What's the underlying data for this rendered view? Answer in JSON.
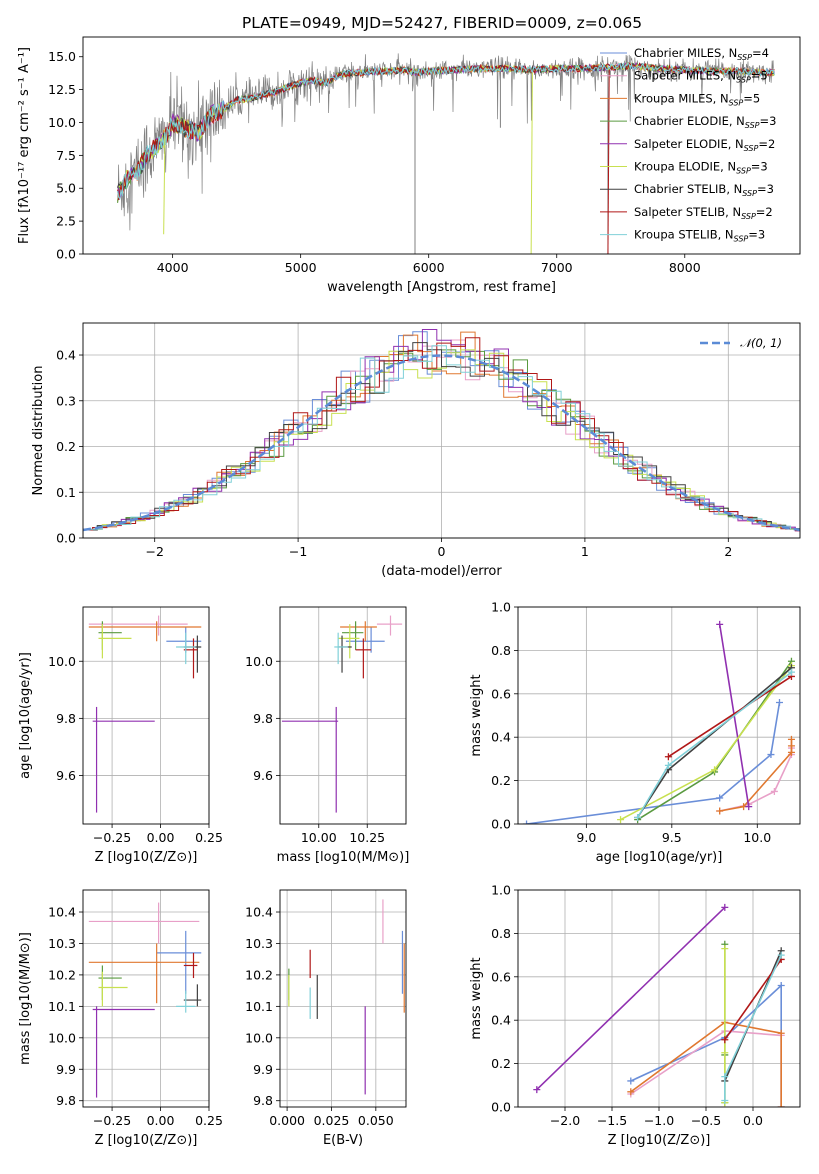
{
  "title": "PLATE=0949, MJD=52427, FIBERID=0009, z=0.065",
  "colors": {
    "spectrum": "#808080",
    "Chabrier MILES": "#6a8ed8",
    "Salpeter MILES": "#e8a0c8",
    "Kroupa MILES": "#e07830",
    "Chabrier ELODIE": "#5a9a40",
    "Salpeter ELODIE": "#9030b0",
    "Kroupa ELODIE": "#c8e050",
    "Chabrier STELIB": "#404040",
    "Salpeter STELIB": "#b01818",
    "Kroupa STELIB": "#80d0d8",
    "normal": "#5b8bd6"
  },
  "chart_data": [
    {
      "id": "spectrum",
      "type": "line",
      "xlabel": "wavelength [Angstrom, rest frame]",
      "ylabel": "Flux [fλ10⁻¹⁷ erg cm⁻² s⁻¹ A⁻¹]",
      "xlim": [
        3300,
        8900
      ],
      "ylim": [
        0,
        16.5
      ],
      "xticks": [
        "4000",
        "5000",
        "6000",
        "7000",
        "8000"
      ],
      "yticks": [
        "0.0",
        "2.5",
        "5.0",
        "7.5",
        "10.0",
        "12.5",
        "15.0"
      ],
      "continuum": [
        [
          3570,
          4.5
        ],
        [
          3650,
          5.8
        ],
        [
          3720,
          6.2
        ],
        [
          3800,
          7.6
        ],
        [
          3880,
          8.2
        ],
        [
          3950,
          9.0
        ],
        [
          4000,
          10.0
        ],
        [
          4100,
          9.6
        ],
        [
          4200,
          9.2
        ],
        [
          4300,
          10.6
        ],
        [
          4400,
          11.0
        ],
        [
          4500,
          11.7
        ],
        [
          4600,
          11.8
        ],
        [
          4700,
          12.1
        ],
        [
          4800,
          12.3
        ],
        [
          4900,
          12.7
        ],
        [
          5000,
          13.0
        ],
        [
          5100,
          13.2
        ],
        [
          5200,
          13.0
        ],
        [
          5300,
          13.6
        ],
        [
          5400,
          13.8
        ],
        [
          5500,
          13.8
        ],
        [
          5600,
          13.9
        ],
        [
          5700,
          13.9
        ],
        [
          5800,
          14.0
        ],
        [
          5900,
          13.8
        ],
        [
          6000,
          13.9
        ],
        [
          6200,
          14.0
        ],
        [
          6400,
          14.1
        ],
        [
          6600,
          14.1
        ],
        [
          6800,
          14.0
        ],
        [
          7000,
          14.1
        ],
        [
          7200,
          14.1
        ],
        [
          7400,
          14.2
        ],
        [
          7600,
          14.3
        ],
        [
          7800,
          14.1
        ],
        [
          8000,
          14.0
        ],
        [
          8200,
          13.9
        ],
        [
          8400,
          13.9
        ],
        [
          8600,
          13.8
        ],
        [
          8700,
          13.8
        ]
      ],
      "legend": [
        {
          "label": "Chabrier MILES, N",
          "sub": "SSP",
          "tail": "=4"
        },
        {
          "label": "Salpeter MILES, N",
          "sub": "SSP",
          "tail": "=5"
        },
        {
          "label": "Kroupa MILES, N",
          "sub": "SSP",
          "tail": "=5"
        },
        {
          "label": "Chabrier ELODIE, N",
          "sub": "SSP",
          "tail": "=3"
        },
        {
          "label": "Salpeter ELODIE, N",
          "sub": "SSP",
          "tail": "=2"
        },
        {
          "label": "Kroupa ELODIE, N",
          "sub": "SSP",
          "tail": "=3"
        },
        {
          "label": "Chabrier STELIB, N",
          "sub": "SSP",
          "tail": "=3"
        },
        {
          "label": "Salpeter STELIB, N",
          "sub": "SSP",
          "tail": "=2"
        },
        {
          "label": "Kroupa STELIB, N",
          "sub": "SSP",
          "tail": "=3"
        }
      ]
    },
    {
      "id": "residuals",
      "type": "histogram",
      "xlabel": "(data-model)/error",
      "ylabel": "Normed distribution",
      "xlim": [
        -2.5,
        2.5
      ],
      "ylim": [
        0,
        0.47
      ],
      "xticks": [
        "−2",
        "−1",
        "0",
        "1",
        "2"
      ],
      "yticks": [
        "0.0",
        "0.1",
        "0.2",
        "0.3",
        "0.4"
      ],
      "legend": "𝒩(0, 1)"
    },
    {
      "id": "age-Z",
      "type": "scatter",
      "xlabel": "Z [log10(Z/Z⊙)]",
      "ylabel": "age  [log10(age/yr)]",
      "xlim": [
        -0.4,
        0.25
      ],
      "ylim": [
        9.43,
        10.19
      ],
      "xticks": [
        "−0.25",
        "0.00",
        "0.25"
      ],
      "yticks": [
        "9.6",
        "9.8",
        "10.0"
      ],
      "points": [
        {
          "model": "Chabrier MILES",
          "x": 0.13,
          "y": 10.07,
          "xerr": [
            0.1,
            0.08
          ],
          "yerr": [
            0.04,
            0.05
          ]
        },
        {
          "model": "Salpeter MILES",
          "x": -0.01,
          "y": 10.13,
          "xerr": [
            0.36,
            0.15
          ],
          "yerr": [
            0.04,
            0.03
          ]
        },
        {
          "model": "Kroupa MILES",
          "x": -0.02,
          "y": 10.12,
          "xerr": [
            0.35,
            0.23
          ],
          "yerr": [
            0.05,
            0.02
          ]
        },
        {
          "model": "Chabrier ELODIE",
          "x": -0.3,
          "y": 10.1,
          "xerr": [
            0.02,
            0.1
          ],
          "yerr": [
            0.06,
            0.04
          ]
        },
        {
          "model": "Salpeter ELODIE",
          "x": -0.33,
          "y": 9.79,
          "xerr": [
            0.02,
            0.3
          ],
          "yerr": [
            0.32,
            0.05
          ]
        },
        {
          "model": "Kroupa ELODIE",
          "x": -0.3,
          "y": 10.08,
          "xerr": [
            0.02,
            0.15
          ],
          "yerr": [
            0.07,
            0.05
          ]
        },
        {
          "model": "Chabrier STELIB",
          "x": 0.19,
          "y": 10.05,
          "xerr": [
            0.07,
            0.02
          ],
          "yerr": [
            0.09,
            0.04
          ]
        },
        {
          "model": "Salpeter STELIB",
          "x": 0.17,
          "y": 10.04,
          "xerr": [
            0.05,
            0.02
          ],
          "yerr": [
            0.1,
            0.04
          ]
        },
        {
          "model": "Kroupa STELIB",
          "x": 0.13,
          "y": 10.05,
          "xerr": [
            0.05,
            0.05
          ],
          "yerr": [
            0.06,
            0.05
          ]
        }
      ]
    },
    {
      "id": "age-mass",
      "type": "scatter",
      "xlabel": "mass [log10(M/M⊙)]",
      "ylabel": "",
      "xlim": [
        9.8,
        10.45
      ],
      "ylim": [
        9.43,
        10.19
      ],
      "xticks": [
        "10.00",
        "10.25"
      ],
      "yticks": [
        "9.6",
        "9.8",
        "10.0"
      ],
      "points": [
        {
          "model": "Chabrier MILES",
          "x": 10.27,
          "y": 10.07,
          "xerr": [
            0.13,
            0.07
          ],
          "yerr": [
            0.04,
            0.05
          ]
        },
        {
          "model": "Salpeter MILES",
          "x": 10.37,
          "y": 10.13,
          "xerr": [
            0.07,
            0.06
          ],
          "yerr": [
            0.04,
            0.03
          ]
        },
        {
          "model": "Kroupa MILES",
          "x": 10.24,
          "y": 10.12,
          "xerr": [
            0.13,
            0.06
          ],
          "yerr": [
            0.05,
            0.02
          ]
        },
        {
          "model": "Chabrier ELODIE",
          "x": 10.19,
          "y": 10.1,
          "xerr": [
            0.07,
            0.04
          ],
          "yerr": [
            0.06,
            0.04
          ]
        },
        {
          "model": "Salpeter ELODIE",
          "x": 10.09,
          "y": 9.79,
          "xerr": [
            0.28,
            0.01
          ],
          "yerr": [
            0.32,
            0.05
          ]
        },
        {
          "model": "Kroupa ELODIE",
          "x": 10.16,
          "y": 10.08,
          "xerr": [
            0.06,
            0.05
          ],
          "yerr": [
            0.07,
            0.05
          ]
        },
        {
          "model": "Chabrier STELIB",
          "x": 10.12,
          "y": 10.05,
          "xerr": [
            0.02,
            0.05
          ],
          "yerr": [
            0.09,
            0.04
          ]
        },
        {
          "model": "Salpeter STELIB",
          "x": 10.23,
          "y": 10.04,
          "xerr": [
            0.04,
            0.04
          ],
          "yerr": [
            0.1,
            0.04
          ]
        },
        {
          "model": "Kroupa STELIB",
          "x": 10.1,
          "y": 10.05,
          "xerr": [
            0.02,
            0.05
          ],
          "yerr": [
            0.06,
            0.05
          ]
        }
      ]
    },
    {
      "id": "weight-age",
      "type": "line",
      "xlabel": "age  [log10(age/yr)]",
      "ylabel": "mass weight",
      "xlim": [
        8.6,
        10.25
      ],
      "ylim": [
        0,
        1.0
      ],
      "xticks": [
        "9.0",
        "9.5",
        "10.0"
      ],
      "yticks": [
        "0.0",
        "0.2",
        "0.4",
        "0.6",
        "0.8",
        "1.0"
      ],
      "series": [
        {
          "model": "Chabrier MILES",
          "x": [
            8.65,
            9.78,
            10.08,
            10.13
          ],
          "y": [
            0.0,
            0.12,
            0.32,
            0.56
          ]
        },
        {
          "model": "Salpeter MILES",
          "x": [
            9.78,
            9.95,
            10.1,
            10.2,
            10.2
          ],
          "y": [
            0.06,
            0.09,
            0.15,
            0.32,
            0.35
          ]
        },
        {
          "model": "Kroupa MILES",
          "x": [
            9.78,
            9.92,
            10.2,
            10.2,
            10.2
          ],
          "y": [
            0.06,
            0.08,
            0.33,
            0.36,
            0.39
          ]
        },
        {
          "model": "Chabrier ELODIE",
          "x": [
            9.3,
            9.75,
            10.2
          ],
          "y": [
            0.02,
            0.24,
            0.75
          ]
        },
        {
          "model": "Salpeter ELODIE",
          "x": [
            9.78,
            9.95
          ],
          "y": [
            0.92,
            0.08
          ]
        },
        {
          "model": "Kroupa ELODIE",
          "x": [
            9.2,
            9.75,
            10.2
          ],
          "y": [
            0.02,
            0.25,
            0.73
          ]
        },
        {
          "model": "Chabrier STELIB",
          "x": [
            9.3,
            9.48,
            10.2
          ],
          "y": [
            0.03,
            0.25,
            0.72
          ]
        },
        {
          "model": "Salpeter STELIB",
          "x": [
            9.48,
            10.2
          ],
          "y": [
            0.31,
            0.68
          ]
        },
        {
          "model": "Kroupa STELIB",
          "x": [
            9.3,
            9.48,
            10.2
          ],
          "y": [
            0.03,
            0.27,
            0.7
          ]
        }
      ]
    },
    {
      "id": "mass-Z",
      "type": "scatter",
      "xlabel": "Z [log10(Z/Z⊙)]",
      "ylabel": "mass [log10(M/M⊙)]",
      "xlim": [
        -0.4,
        0.25
      ],
      "ylim": [
        9.78,
        10.47
      ],
      "xticks": [
        "−0.25",
        "0.00",
        "0.25"
      ],
      "yticks": [
        "9.8",
        "9.9",
        "10.0",
        "10.1",
        "10.2",
        "10.3",
        "10.4"
      ],
      "points": [
        {
          "model": "Chabrier MILES",
          "x": 0.13,
          "y": 10.27,
          "xerr": [
            0.15,
            0.08
          ],
          "yerr": [
            0.13,
            0.07
          ]
        },
        {
          "model": "Salpeter MILES",
          "x": -0.01,
          "y": 10.37,
          "xerr": [
            0.36,
            0.21
          ],
          "yerr": [
            0.07,
            0.06
          ]
        },
        {
          "model": "Kroupa MILES",
          "x": -0.02,
          "y": 10.24,
          "xerr": [
            0.35,
            0.22
          ],
          "yerr": [
            0.13,
            0.06
          ]
        },
        {
          "model": "Chabrier ELODIE",
          "x": -0.3,
          "y": 10.19,
          "xerr": [
            0.02,
            0.1
          ],
          "yerr": [
            0.07,
            0.04
          ]
        },
        {
          "model": "Salpeter ELODIE",
          "x": -0.33,
          "y": 10.09,
          "xerr": [
            0.02,
            0.3
          ],
          "yerr": [
            0.28,
            0.01
          ]
        },
        {
          "model": "Kroupa ELODIE",
          "x": -0.3,
          "y": 10.16,
          "xerr": [
            0.02,
            0.13
          ],
          "yerr": [
            0.06,
            0.05
          ]
        },
        {
          "model": "Chabrier STELIB",
          "x": 0.19,
          "y": 10.12,
          "xerr": [
            0.07,
            0.02
          ],
          "yerr": [
            0.02,
            0.05
          ]
        },
        {
          "model": "Salpeter STELIB",
          "x": 0.17,
          "y": 10.23,
          "xerr": [
            0.05,
            0.02
          ],
          "yerr": [
            0.04,
            0.04
          ]
        },
        {
          "model": "Kroupa STELIB",
          "x": 0.13,
          "y": 10.1,
          "xerr": [
            0.05,
            0.05
          ],
          "yerr": [
            0.02,
            0.05
          ]
        }
      ]
    },
    {
      "id": "mass-EBV",
      "type": "scatter",
      "xlabel": "E(B-V)",
      "ylabel": "",
      "xlim": [
        -0.004,
        0.067
      ],
      "ylim": [
        9.78,
        10.47
      ],
      "xticks": [
        "0.000",
        "0.025",
        "0.050"
      ],
      "yticks": [
        "9.8",
        "9.9",
        "10.0",
        "10.1",
        "10.2",
        "10.3",
        "10.4"
      ],
      "points": [
        {
          "model": "Chabrier MILES",
          "x": 0.065,
          "y": 10.27,
          "yerr": [
            0.13,
            0.07
          ]
        },
        {
          "model": "Salpeter MILES",
          "x": 0.054,
          "y": 10.37,
          "yerr": [
            0.07,
            0.07
          ]
        },
        {
          "model": "Kroupa MILES",
          "x": 0.066,
          "y": 10.24,
          "yerr": [
            0.16,
            0.06
          ]
        },
        {
          "model": "Chabrier ELODIE",
          "x": 0.001,
          "y": 10.19,
          "yerr": [
            0.07,
            0.03
          ]
        },
        {
          "model": "Salpeter ELODIE",
          "x": 0.044,
          "y": 10.09,
          "yerr": [
            0.27,
            0.01
          ]
        },
        {
          "model": "Kroupa ELODIE",
          "x": 0.001,
          "y": 10.16,
          "yerr": [
            0.06,
            0.04
          ]
        },
        {
          "model": "Chabrier STELIB",
          "x": 0.017,
          "y": 10.12,
          "yerr": [
            0.06,
            0.08
          ]
        },
        {
          "model": "Salpeter STELIB",
          "x": 0.013,
          "y": 10.23,
          "yerr": [
            0.04,
            0.05
          ]
        },
        {
          "model": "Kroupa STELIB",
          "x": 0.013,
          "y": 10.1,
          "yerr": [
            0.04,
            0.06
          ]
        }
      ]
    },
    {
      "id": "weight-Z",
      "type": "line",
      "xlabel": "Z [log10(Z/Z⊙)]",
      "ylabel": "mass weight",
      "xlim": [
        -2.5,
        0.5
      ],
      "ylim": [
        0,
        1.0
      ],
      "xticks": [
        "−2.0",
        "−1.5",
        "−1.0",
        "−0.5",
        "0.0"
      ],
      "yticks": [
        "0.0",
        "0.2",
        "0.4",
        "0.6",
        "0.8",
        "1.0"
      ],
      "series": [
        {
          "model": "Chabrier MILES",
          "x": [
            -1.3,
            -0.3,
            0.3,
            0.3
          ],
          "y": [
            0.12,
            0.32,
            0.56,
            0.0
          ]
        },
        {
          "model": "Salpeter MILES",
          "x": [
            -1.3,
            -0.3,
            0.3,
            0.3
          ],
          "y": [
            0.06,
            0.35,
            0.33,
            0.0
          ]
        },
        {
          "model": "Kroupa MILES",
          "x": [
            -1.3,
            -0.3,
            0.3,
            0.3
          ],
          "y": [
            0.07,
            0.39,
            0.34,
            0.0
          ]
        },
        {
          "model": "Chabrier ELODIE",
          "x": [
            -0.3,
            -0.3,
            -0.3
          ],
          "y": [
            0.75,
            0.24,
            0.02
          ]
        },
        {
          "model": "Salpeter ELODIE",
          "x": [
            -2.3,
            -0.3
          ],
          "y": [
            0.08,
            0.92
          ]
        },
        {
          "model": "Kroupa ELODIE",
          "x": [
            -0.3,
            -0.3,
            -0.3
          ],
          "y": [
            0.73,
            0.25,
            0.02
          ]
        },
        {
          "model": "Chabrier STELIB",
          "x": [
            -0.3,
            0.3
          ],
          "y": [
            0.12,
            0.72
          ]
        },
        {
          "model": "Salpeter STELIB",
          "x": [
            -0.3,
            0.3
          ],
          "y": [
            0.31,
            0.68
          ]
        },
        {
          "model": "Kroupa STELIB",
          "x": [
            -0.3,
            -0.3,
            0.3
          ],
          "y": [
            0.03,
            0.14,
            0.7
          ]
        }
      ]
    }
  ]
}
